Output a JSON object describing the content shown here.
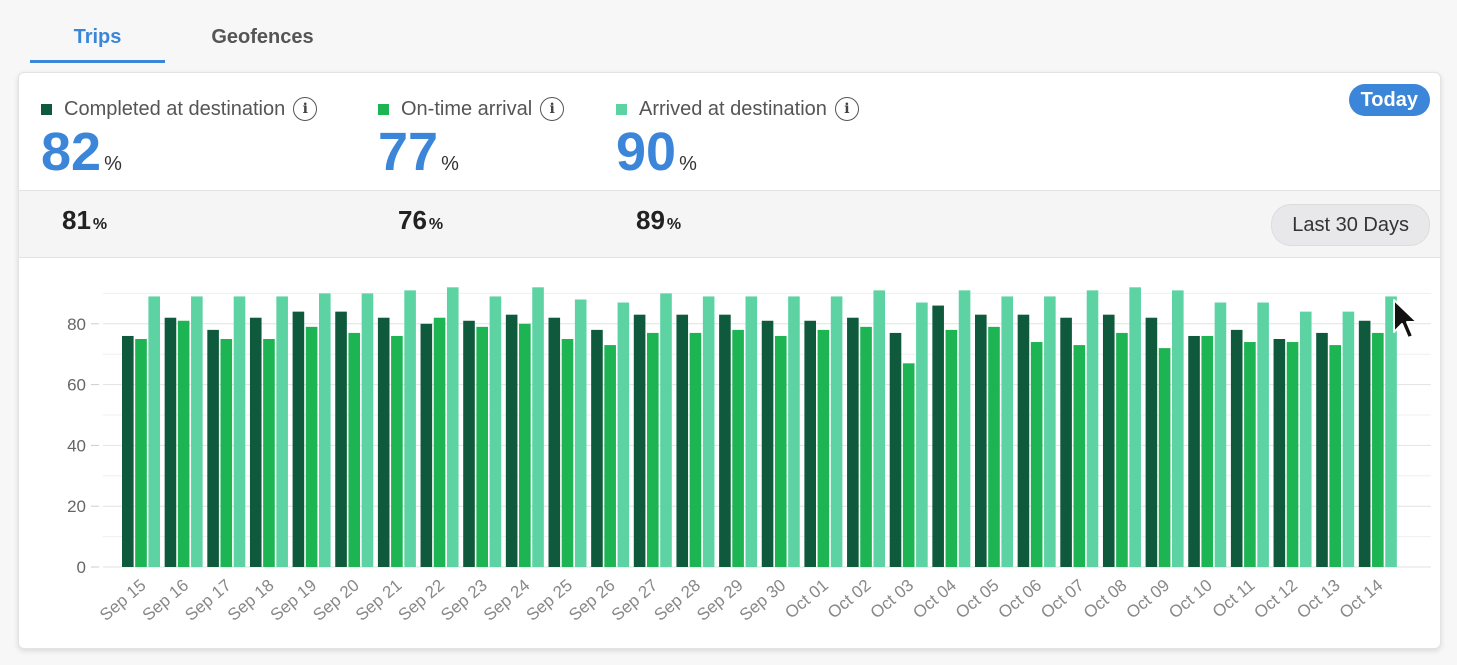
{
  "tabs": [
    {
      "label": "Trips",
      "active": true
    },
    {
      "label": "Geofences",
      "active": false
    }
  ],
  "stats": [
    {
      "label": "Completed at destination",
      "value": "82",
      "prev": "81",
      "color": "#0f5a3c"
    },
    {
      "label": "On-time arrival",
      "value": "77",
      "prev": "76",
      "color": "#1db454"
    },
    {
      "label": "Arrived at destination",
      "value": "90",
      "prev": "89",
      "color": "#5dd3a3"
    }
  ],
  "percent_symbol": "%",
  "info_icon_glyph": "i",
  "today_label": "Today",
  "range_label": "Last 30 Days",
  "chart_data": {
    "type": "bar",
    "categories": [
      "Sep 15",
      "Sep 16",
      "Sep 17",
      "Sep 18",
      "Sep 19",
      "Sep 20",
      "Sep 21",
      "Sep 22",
      "Sep 23",
      "Sep 24",
      "Sep 25",
      "Sep 26",
      "Sep 27",
      "Sep 28",
      "Sep 29",
      "Sep 30",
      "Oct 01",
      "Oct 02",
      "Oct 03",
      "Oct 04",
      "Oct 05",
      "Oct 06",
      "Oct 07",
      "Oct 08",
      "Oct 09",
      "Oct 10",
      "Oct 11",
      "Oct 12",
      "Oct 13",
      "Oct 14"
    ],
    "series": [
      {
        "name": "Completed at destination",
        "color": "#0f5a3c",
        "values": [
          76,
          82,
          78,
          82,
          84,
          84,
          82,
          80,
          81,
          83,
          82,
          78,
          83,
          83,
          83,
          81,
          81,
          82,
          77,
          86,
          83,
          83,
          82,
          83,
          82,
          76,
          78,
          75,
          77,
          81
        ]
      },
      {
        "name": "On-time arrival",
        "color": "#1db454",
        "values": [
          75,
          81,
          75,
          75,
          79,
          77,
          76,
          82,
          79,
          80,
          75,
          73,
          77,
          77,
          78,
          76,
          78,
          79,
          67,
          78,
          79,
          74,
          73,
          77,
          72,
          76,
          74,
          74,
          73,
          77
        ]
      },
      {
        "name": "Arrived at destination",
        "color": "#5dd3a3",
        "values": [
          89,
          89,
          89,
          89,
          90,
          90,
          91,
          92,
          89,
          92,
          88,
          87,
          90,
          89,
          89,
          89,
          89,
          91,
          87,
          91,
          89,
          89,
          91,
          92,
          91,
          87,
          87,
          84,
          84,
          89
        ]
      }
    ],
    "yticks": [
      0,
      20,
      40,
      60,
      80
    ],
    "ylim": [
      0,
      90
    ],
    "grid": true
  }
}
